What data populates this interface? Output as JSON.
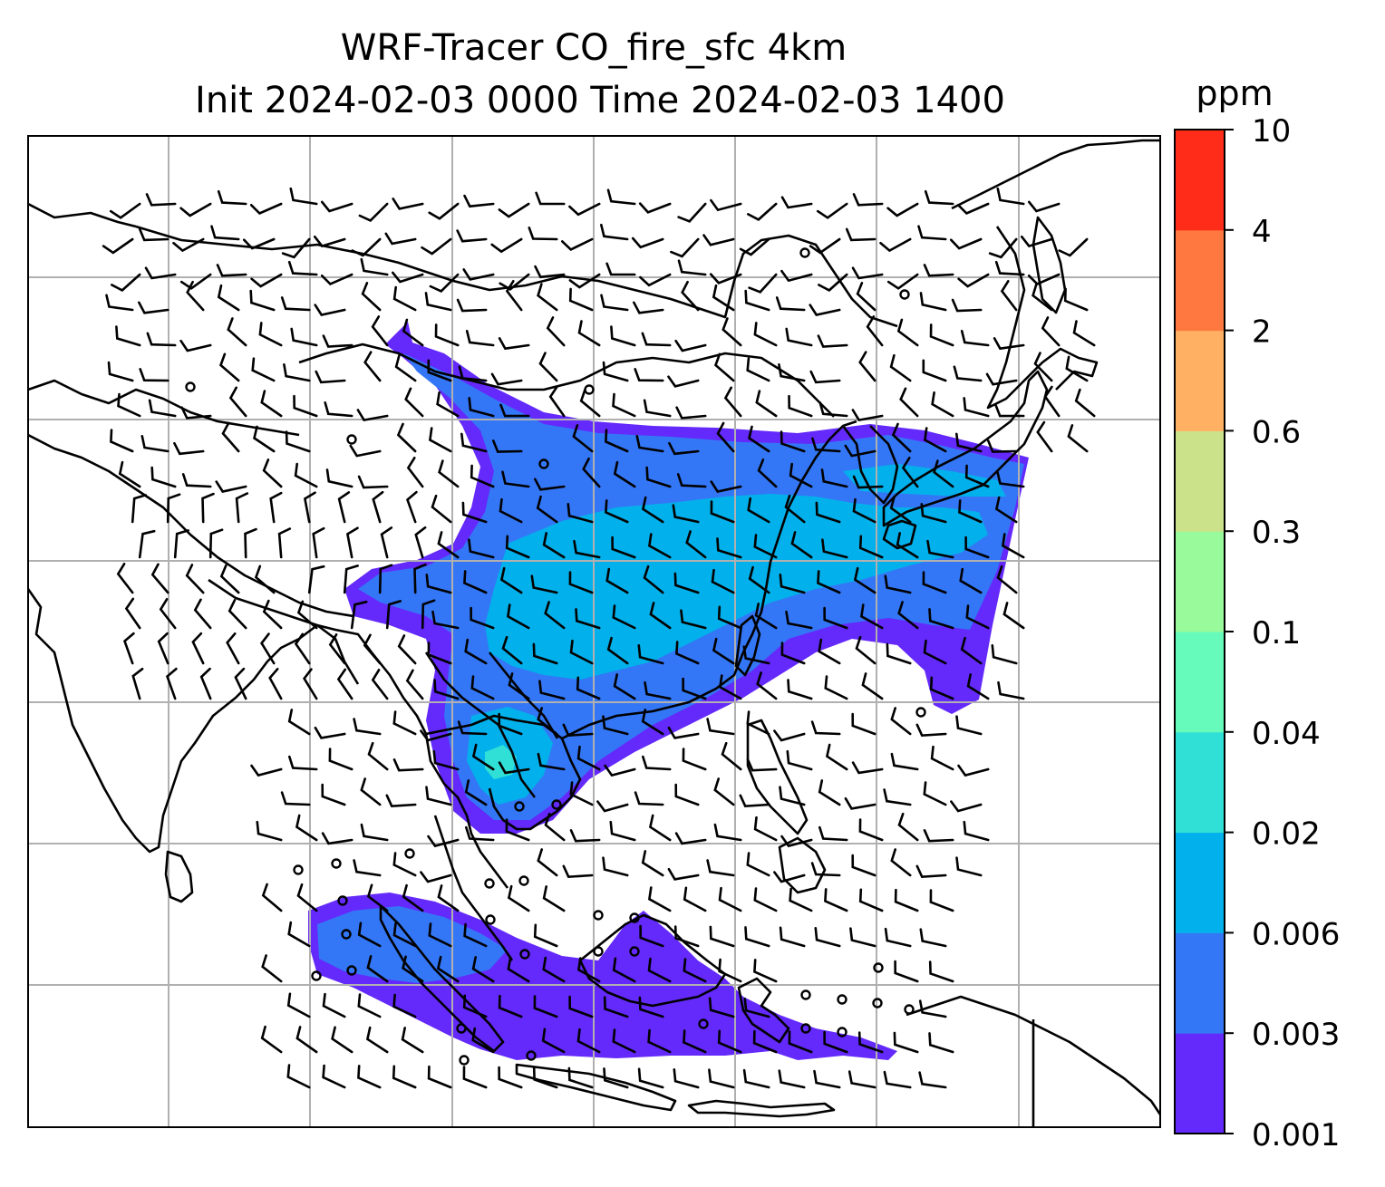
{
  "title": {
    "line1": "WRF-Tracer CO_fire_sfc 4km",
    "line2": "Init 2024-02-03 0000 Time 2024-02-03 1400"
  },
  "colorbar": {
    "unit": "ppm",
    "levels": [
      "0.001",
      "0.003",
      "0.006",
      "0.02",
      "0.04",
      "0.1",
      "0.3",
      "0.6",
      "2",
      "4",
      "10"
    ],
    "colors": [
      "#6429fb",
      "#3477f6",
      "#02b1eb",
      "#30dfd6",
      "#66fbbb",
      "#98fa9b",
      "#cce28a",
      "#ffb062",
      "#ff7840",
      "#fe2c18"
    ]
  },
  "map": {
    "background": "#ffffff",
    "gridline_color": "#b0b0b0",
    "coastline_color": "#000000",
    "shown_fields": [
      "CO_fire_sfc filled contours",
      "wind barbs",
      "coastlines and borders",
      "lat/lon gridlines"
    ]
  }
}
